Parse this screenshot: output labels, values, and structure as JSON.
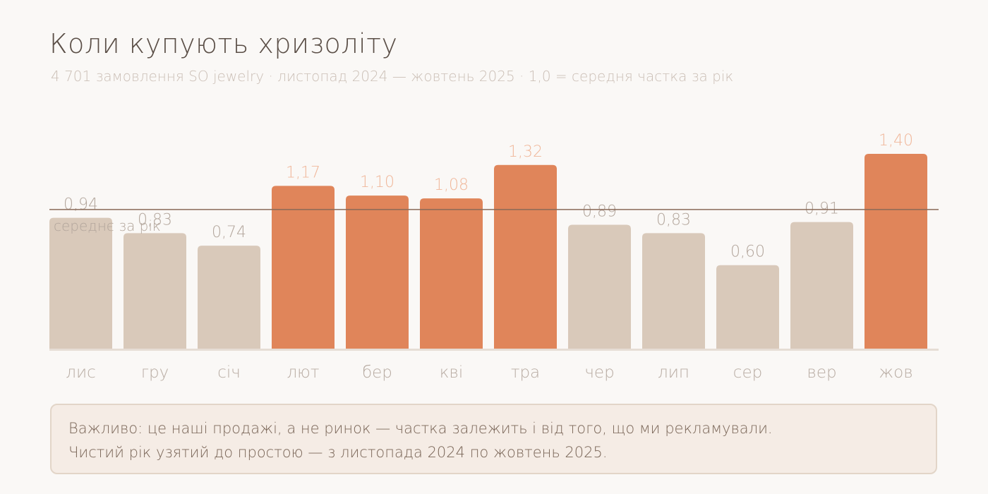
{
  "title": "Коли купують хризоліту",
  "subtitle": "4 701 замовлення SO jewelry · листопад 2024 — жовтень 2025 · 1,0 = середня частка за рік",
  "colors": {
    "highlight": "#e0855a",
    "muted": "#d9c9ba",
    "highlight_label": "#f0b79a",
    "muted_label": "#b3a69c",
    "average_line": "#8a6a58",
    "average_label": "#b3a69c",
    "baseline": "#e6ddd5",
    "month_label": "#b8aca3"
  },
  "chart_data": {
    "type": "bar",
    "categories": [
      "лис",
      "гру",
      "січ",
      "лют",
      "бер",
      "кві",
      "тра",
      "чер",
      "лип",
      "сер",
      "вер",
      "жов"
    ],
    "values": [
      0.94,
      0.83,
      0.74,
      1.17,
      1.1,
      1.08,
      1.32,
      0.89,
      0.83,
      0.6,
      0.91,
      1.4
    ],
    "value_labels": [
      "0,94",
      "0,83",
      "0,74",
      "1,17",
      "1,10",
      "1,08",
      "1,32",
      "0,89",
      "0,83",
      "0,60",
      "0,91",
      "1,40"
    ],
    "highlighted": [
      false,
      false,
      false,
      true,
      true,
      true,
      true,
      false,
      false,
      false,
      false,
      true
    ],
    "reference_line": {
      "value": 1.0,
      "label": "середнє за рік"
    },
    "ylim": [
      0,
      1.4
    ],
    "grid": false,
    "xlabel": "",
    "ylabel": ""
  },
  "note": {
    "line1": "Важливо: це наші продажі, а не ринок — частка залежить і від того, що ми рекламували.",
    "line2": "Чистий рік узятий до простою — з листопада 2024 по жовтень 2025."
  }
}
